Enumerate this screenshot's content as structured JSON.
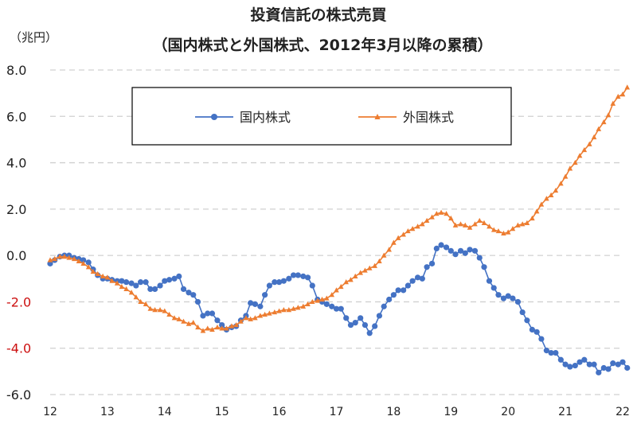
{
  "chart_data": {
    "type": "line",
    "title": "投資信託の株式売買",
    "subtitle": "（国内株式と外国株式、2012年3月以降の累積）",
    "unit": "（兆円）",
    "ylim": [
      -6.0,
      8.0
    ],
    "y_ticks": [
      "8.0",
      "6.0",
      "4.0",
      "2.0",
      "0.0",
      "-2.0",
      "-4.0",
      "-6.0"
    ],
    "xlim": [
      12,
      22
    ],
    "x_ticks": [
      "12",
      "13",
      "14",
      "15",
      "16",
      "17",
      "18",
      "19",
      "20",
      "21",
      "22"
    ],
    "grid": true,
    "legend_position": "top-center",
    "series": [
      {
        "name": "国内株式",
        "color": "#4472c4",
        "marker": "circle",
        "points": [
          [
            12.0,
            -0.35
          ],
          [
            12.08,
            -0.2
          ],
          [
            12.17,
            -0.05
          ],
          [
            12.25,
            0.0
          ],
          [
            12.33,
            0.0
          ],
          [
            12.42,
            -0.1
          ],
          [
            12.5,
            -0.15
          ],
          [
            12.58,
            -0.2
          ],
          [
            12.67,
            -0.3
          ],
          [
            12.75,
            -0.6
          ],
          [
            12.83,
            -0.85
          ],
          [
            12.92,
            -1.0
          ],
          [
            13.0,
            -1.0
          ],
          [
            13.08,
            -1.05
          ],
          [
            13.17,
            -1.1
          ],
          [
            13.25,
            -1.1
          ],
          [
            13.33,
            -1.15
          ],
          [
            13.42,
            -1.2
          ],
          [
            13.5,
            -1.3
          ],
          [
            13.58,
            -1.15
          ],
          [
            13.67,
            -1.15
          ],
          [
            13.75,
            -1.45
          ],
          [
            13.83,
            -1.45
          ],
          [
            13.92,
            -1.3
          ],
          [
            14.0,
            -1.1
          ],
          [
            14.08,
            -1.05
          ],
          [
            14.17,
            -1.0
          ],
          [
            14.25,
            -0.9
          ],
          [
            14.33,
            -1.45
          ],
          [
            14.42,
            -1.6
          ],
          [
            14.5,
            -1.7
          ],
          [
            14.58,
            -2.0
          ],
          [
            14.67,
            -2.6
          ],
          [
            14.75,
            -2.5
          ],
          [
            14.83,
            -2.5
          ],
          [
            14.92,
            -2.8
          ],
          [
            15.0,
            -3.0
          ],
          [
            15.08,
            -3.2
          ],
          [
            15.17,
            -3.1
          ],
          [
            15.25,
            -3.05
          ],
          [
            15.33,
            -2.8
          ],
          [
            15.42,
            -2.6
          ],
          [
            15.5,
            -2.05
          ],
          [
            15.58,
            -2.1
          ],
          [
            15.67,
            -2.2
          ],
          [
            15.75,
            -1.7
          ],
          [
            15.83,
            -1.3
          ],
          [
            15.92,
            -1.15
          ],
          [
            16.0,
            -1.15
          ],
          [
            16.08,
            -1.1
          ],
          [
            16.17,
            -1.0
          ],
          [
            16.25,
            -0.85
          ],
          [
            16.33,
            -0.85
          ],
          [
            16.42,
            -0.9
          ],
          [
            16.5,
            -0.95
          ],
          [
            16.58,
            -1.3
          ],
          [
            16.67,
            -1.9
          ],
          [
            16.75,
            -2.0
          ],
          [
            16.83,
            -2.1
          ],
          [
            16.92,
            -2.2
          ],
          [
            17.0,
            -2.3
          ],
          [
            17.08,
            -2.3
          ],
          [
            17.17,
            -2.7
          ],
          [
            17.25,
            -3.0
          ],
          [
            17.33,
            -2.9
          ],
          [
            17.42,
            -2.7
          ],
          [
            17.5,
            -3.0
          ],
          [
            17.58,
            -3.35
          ],
          [
            17.67,
            -3.05
          ],
          [
            17.75,
            -2.6
          ],
          [
            17.83,
            -2.2
          ],
          [
            17.92,
            -1.9
          ],
          [
            18.0,
            -1.7
          ],
          [
            18.08,
            -1.5
          ],
          [
            18.17,
            -1.5
          ],
          [
            18.25,
            -1.3
          ],
          [
            18.33,
            -1.1
          ],
          [
            18.42,
            -0.95
          ],
          [
            18.5,
            -1.0
          ],
          [
            18.58,
            -0.5
          ],
          [
            18.67,
            -0.35
          ],
          [
            18.75,
            0.3
          ],
          [
            18.83,
            0.45
          ],
          [
            18.92,
            0.35
          ],
          [
            19.0,
            0.2
          ],
          [
            19.08,
            0.05
          ],
          [
            19.17,
            0.2
          ],
          [
            19.25,
            0.1
          ],
          [
            19.33,
            0.25
          ],
          [
            19.42,
            0.2
          ],
          [
            19.5,
            -0.1
          ],
          [
            19.58,
            -0.5
          ],
          [
            19.67,
            -1.1
          ],
          [
            19.75,
            -1.4
          ],
          [
            19.83,
            -1.7
          ],
          [
            19.92,
            -1.85
          ],
          [
            20.0,
            -1.75
          ],
          [
            20.08,
            -1.85
          ],
          [
            20.17,
            -2.0
          ],
          [
            20.25,
            -2.45
          ],
          [
            20.33,
            -2.8
          ],
          [
            20.42,
            -3.2
          ],
          [
            20.5,
            -3.3
          ],
          [
            20.58,
            -3.6
          ],
          [
            20.67,
            -4.1
          ],
          [
            20.75,
            -4.2
          ],
          [
            20.83,
            -4.2
          ],
          [
            20.92,
            -4.5
          ],
          [
            21.0,
            -4.7
          ],
          [
            21.08,
            -4.8
          ],
          [
            21.17,
            -4.75
          ],
          [
            21.25,
            -4.6
          ],
          [
            21.33,
            -4.5
          ],
          [
            21.42,
            -4.7
          ],
          [
            21.5,
            -4.7
          ],
          [
            21.58,
            -5.05
          ],
          [
            21.67,
            -4.85
          ],
          [
            21.75,
            -4.9
          ],
          [
            21.83,
            -4.65
          ],
          [
            21.92,
            -4.7
          ],
          [
            22.0,
            -4.6
          ],
          [
            22.08,
            -4.85
          ]
        ]
      },
      {
        "name": "外国株式",
        "color": "#ed7d31",
        "marker": "triangle",
        "points": [
          [
            12.0,
            -0.2
          ],
          [
            12.08,
            -0.15
          ],
          [
            12.17,
            -0.05
          ],
          [
            12.25,
            -0.05
          ],
          [
            12.33,
            -0.1
          ],
          [
            12.42,
            -0.15
          ],
          [
            12.5,
            -0.25
          ],
          [
            12.58,
            -0.35
          ],
          [
            12.67,
            -0.5
          ],
          [
            12.75,
            -0.7
          ],
          [
            12.83,
            -0.8
          ],
          [
            12.92,
            -0.9
          ],
          [
            13.0,
            -0.95
          ],
          [
            13.08,
            -1.1
          ],
          [
            13.17,
            -1.2
          ],
          [
            13.25,
            -1.35
          ],
          [
            13.33,
            -1.45
          ],
          [
            13.42,
            -1.6
          ],
          [
            13.5,
            -1.8
          ],
          [
            13.58,
            -2.0
          ],
          [
            13.67,
            -2.1
          ],
          [
            13.75,
            -2.3
          ],
          [
            13.83,
            -2.35
          ],
          [
            13.92,
            -2.35
          ],
          [
            14.0,
            -2.4
          ],
          [
            14.08,
            -2.55
          ],
          [
            14.17,
            -2.7
          ],
          [
            14.25,
            -2.75
          ],
          [
            14.33,
            -2.85
          ],
          [
            14.42,
            -2.95
          ],
          [
            14.5,
            -2.9
          ],
          [
            14.58,
            -3.1
          ],
          [
            14.67,
            -3.25
          ],
          [
            14.75,
            -3.15
          ],
          [
            14.83,
            -3.2
          ],
          [
            14.92,
            -3.1
          ],
          [
            15.0,
            -3.15
          ],
          [
            15.08,
            -3.15
          ],
          [
            15.17,
            -3.05
          ],
          [
            15.25,
            -3.0
          ],
          [
            15.33,
            -2.85
          ],
          [
            15.42,
            -2.7
          ],
          [
            15.5,
            -2.75
          ],
          [
            15.58,
            -2.7
          ],
          [
            15.67,
            -2.6
          ],
          [
            15.75,
            -2.55
          ],
          [
            15.83,
            -2.5
          ],
          [
            15.92,
            -2.45
          ],
          [
            16.0,
            -2.4
          ],
          [
            16.08,
            -2.35
          ],
          [
            16.17,
            -2.35
          ],
          [
            16.25,
            -2.3
          ],
          [
            16.33,
            -2.25
          ],
          [
            16.42,
            -2.2
          ],
          [
            16.5,
            -2.1
          ],
          [
            16.58,
            -2.0
          ],
          [
            16.67,
            -1.95
          ],
          [
            16.75,
            -1.9
          ],
          [
            16.83,
            -1.85
          ],
          [
            16.92,
            -1.7
          ],
          [
            17.0,
            -1.5
          ],
          [
            17.08,
            -1.35
          ],
          [
            17.17,
            -1.15
          ],
          [
            17.25,
            -1.05
          ],
          [
            17.33,
            -0.9
          ],
          [
            17.42,
            -0.75
          ],
          [
            17.5,
            -0.65
          ],
          [
            17.58,
            -0.55
          ],
          [
            17.67,
            -0.45
          ],
          [
            17.75,
            -0.25
          ],
          [
            17.83,
            0.0
          ],
          [
            17.92,
            0.25
          ],
          [
            18.0,
            0.55
          ],
          [
            18.08,
            0.75
          ],
          [
            18.17,
            0.9
          ],
          [
            18.25,
            1.05
          ],
          [
            18.33,
            1.15
          ],
          [
            18.42,
            1.25
          ],
          [
            18.5,
            1.35
          ],
          [
            18.58,
            1.5
          ],
          [
            18.67,
            1.65
          ],
          [
            18.75,
            1.8
          ],
          [
            18.83,
            1.85
          ],
          [
            18.92,
            1.8
          ],
          [
            19.0,
            1.6
          ],
          [
            19.08,
            1.3
          ],
          [
            19.17,
            1.35
          ],
          [
            19.25,
            1.3
          ],
          [
            19.33,
            1.2
          ],
          [
            19.42,
            1.35
          ],
          [
            19.5,
            1.5
          ],
          [
            19.58,
            1.4
          ],
          [
            19.67,
            1.25
          ],
          [
            19.75,
            1.1
          ],
          [
            19.83,
            1.05
          ],
          [
            19.92,
            0.95
          ],
          [
            20.0,
            1.0
          ],
          [
            20.08,
            1.15
          ],
          [
            20.17,
            1.3
          ],
          [
            20.25,
            1.35
          ],
          [
            20.33,
            1.4
          ],
          [
            20.42,
            1.6
          ],
          [
            20.5,
            1.9
          ],
          [
            20.58,
            2.2
          ],
          [
            20.67,
            2.45
          ],
          [
            20.75,
            2.6
          ],
          [
            20.83,
            2.8
          ],
          [
            20.92,
            3.1
          ],
          [
            21.0,
            3.4
          ],
          [
            21.08,
            3.75
          ],
          [
            21.17,
            4.0
          ],
          [
            21.25,
            4.3
          ],
          [
            21.33,
            4.55
          ],
          [
            21.42,
            4.8
          ],
          [
            21.5,
            5.1
          ],
          [
            21.58,
            5.45
          ],
          [
            21.67,
            5.75
          ],
          [
            21.75,
            6.05
          ],
          [
            21.83,
            6.55
          ],
          [
            21.92,
            6.85
          ],
          [
            22.0,
            6.95
          ],
          [
            22.08,
            7.25
          ]
        ]
      }
    ]
  }
}
